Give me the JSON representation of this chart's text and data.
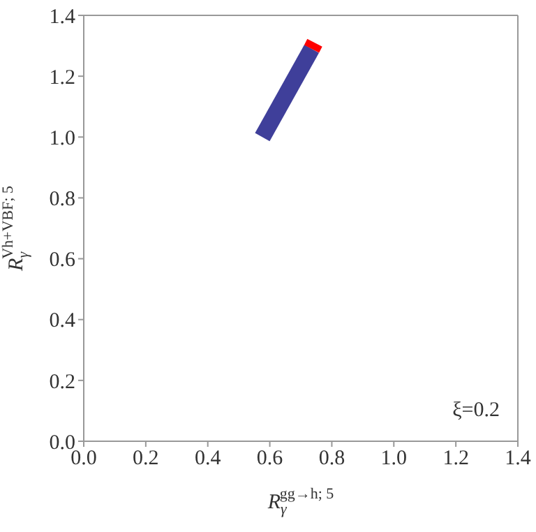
{
  "chart_data": {
    "type": "line",
    "xlabel": "R$_{γ}$$^{gg→h; 5}$",
    "ylabel": "R$_{γ}$$^{Vh+VBF; 5}$",
    "annotations": [
      "ξ=0.2"
    ],
    "xlim": [
      0,
      1.4
    ],
    "ylim": [
      0,
      1.4
    ],
    "xticks": [
      {
        "value": 0,
        "label": "0.0"
      },
      {
        "value": 0.2,
        "label": "0.2"
      },
      {
        "value": 0.4,
        "label": "0.4"
      },
      {
        "value": 0.6,
        "label": "0.6"
      },
      {
        "value": 0.8,
        "label": "0.8"
      },
      {
        "value": 1,
        "label": "1.0"
      },
      {
        "value": 1.2,
        "label": "1.2"
      },
      {
        "value": 1.4,
        "label": "1.4"
      }
    ],
    "yticks": [
      {
        "value": 0,
        "label": "0.0"
      },
      {
        "value": 0.2,
        "label": "0.2"
      },
      {
        "value": 0.4,
        "label": "0.4"
      },
      {
        "value": 0.6,
        "label": "0.6"
      },
      {
        "value": 0.8,
        "label": "0.8"
      },
      {
        "value": 1,
        "label": "1.0"
      },
      {
        "value": 1.2,
        "label": "1.2"
      },
      {
        "value": 1.4,
        "label": "1.4"
      }
    ],
    "grid": false,
    "legend": false,
    "marker": "none",
    "line_style": "solid",
    "series": [
      {
        "color": "#3f3f9a",
        "x": [
          0.576,
          0.735
        ],
        "values": [
          1.0,
          1.29
        ]
      },
      {
        "color": "#ff0000",
        "x": [
          0.735,
          0.745
        ],
        "values": [
          1.29,
          1.31
        ]
      }
    ]
  }
}
